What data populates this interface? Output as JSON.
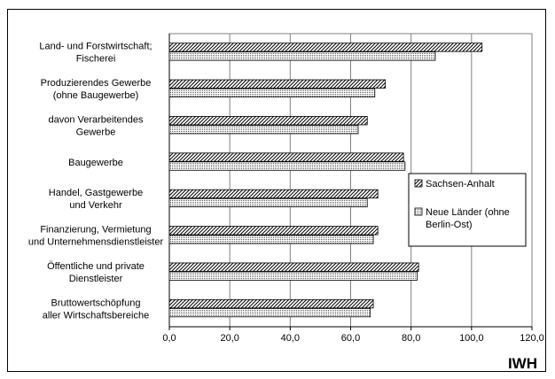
{
  "chart_data": {
    "type": "bar",
    "orientation": "horizontal",
    "categories": [
      [
        "Land- und Forstwirtschaft;",
        "Fischerei"
      ],
      [
        "Produzierendes Gewerbe",
        "(ohne Baugewerbe)"
      ],
      [
        "davon Verarbeitendes",
        "Gewerbe"
      ],
      [
        "Baugewerbe"
      ],
      [
        "Handel, Gastgewerbe",
        "und Verkehr"
      ],
      [
        "Finanzierung, Vermietung",
        "und Unternehmensdienstleister"
      ],
      [
        "Öffentliche und private",
        "Dienstleister"
      ],
      [
        "Bruttowertschöpfung",
        "aller Wirtschaftsbereiche"
      ]
    ],
    "series": [
      {
        "name": "Sachsen-Anhalt",
        "pattern": "hatch",
        "values": [
          103.5,
          71.5,
          65.5,
          77.5,
          69.0,
          69.0,
          82.5,
          67.5
        ]
      },
      {
        "name": [
          "Neue Länder (ohne",
          "Berlin-Ost)"
        ],
        "pattern": "dots",
        "values": [
          88.0,
          68.0,
          62.5,
          78.0,
          65.5,
          67.5,
          82.0,
          66.5
        ]
      }
    ],
    "xlim": [
      0,
      120
    ],
    "xticks": [
      "0,0",
      "20,0",
      "40,0",
      "60,0",
      "80,0",
      "100,0",
      "120,0"
    ],
    "grid": "vertical",
    "legend": "right"
  },
  "logo": "IWH"
}
